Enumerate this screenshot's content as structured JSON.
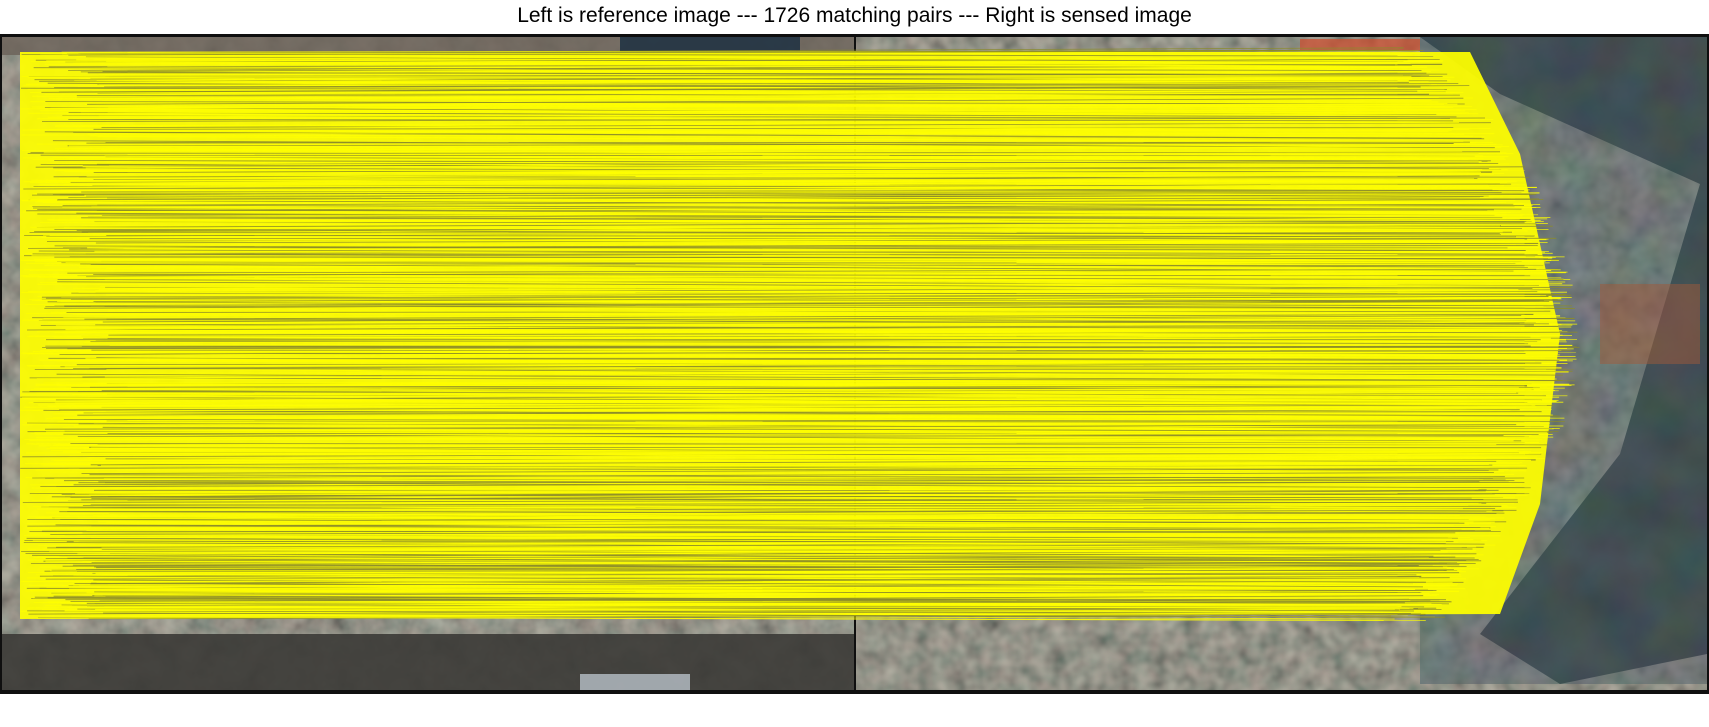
{
  "figure": {
    "title": "Left is reference image --- 1726 matching pairs --- Right is sensed image",
    "match_line_color": "#ffff00",
    "panels": [
      {
        "name": "reference-image",
        "depicts": "satellite-port-scene"
      },
      {
        "name": "sensed-image",
        "depicts": "satellite-port-scene"
      }
    ]
  }
}
